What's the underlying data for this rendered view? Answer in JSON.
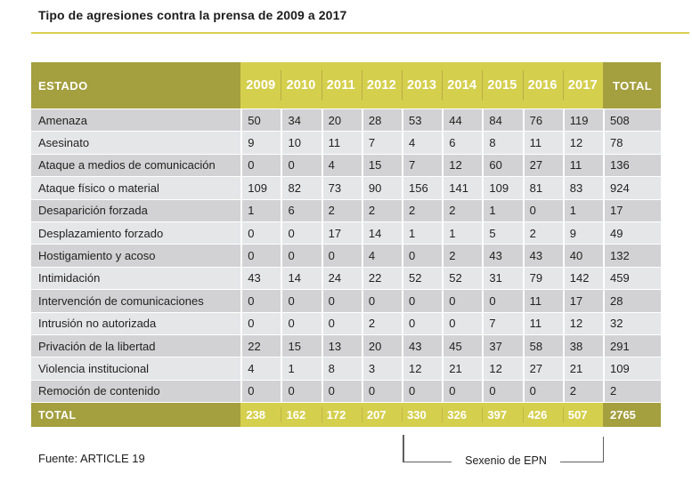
{
  "title": "Tipo de agresiones contra la prensa de 2009 a 2017",
  "source": "Fuente: ARTICLE 19",
  "annotation": "Sexenio de EPN",
  "colors": {
    "header_dark": "#a49f3f",
    "header_light": "#d5cf4e",
    "row_dark": "#d2d2d4",
    "row_light": "#e5e6e8",
    "rule": "#d8cf52",
    "divider_dark": "#b6af45",
    "divider_total": "#beb746",
    "bracket": "#5f5f5f"
  },
  "chart_data": {
    "type": "table",
    "title": "Tipo de agresiones contra la prensa de 2009 a 2017",
    "columns": [
      "ESTADO",
      "2009",
      "2010",
      "2011",
      "2012",
      "2013",
      "2014",
      "2015",
      "2016",
      "2017",
      "TOTAL"
    ],
    "rows": [
      {
        "label": "Amenaza",
        "values": [
          50,
          34,
          20,
          28,
          53,
          44,
          84,
          76,
          119,
          508
        ]
      },
      {
        "label": "Asesinato",
        "values": [
          9,
          10,
          11,
          7,
          4,
          6,
          8,
          11,
          12,
          78
        ]
      },
      {
        "label": "Ataque a medios de comunicación",
        "values": [
          0,
          0,
          4,
          15,
          7,
          12,
          60,
          27,
          11,
          136
        ]
      },
      {
        "label": "Ataque físico o material",
        "values": [
          109,
          82,
          73,
          90,
          156,
          141,
          109,
          81,
          83,
          924
        ]
      },
      {
        "label": "Desaparición forzada",
        "values": [
          1,
          6,
          2,
          2,
          2,
          2,
          1,
          0,
          1,
          17
        ]
      },
      {
        "label": "Desplazamiento forzado",
        "values": [
          0,
          0,
          17,
          14,
          1,
          1,
          5,
          2,
          9,
          49
        ]
      },
      {
        "label": "Hostigamiento y acoso",
        "values": [
          0,
          0,
          0,
          4,
          0,
          2,
          43,
          43,
          40,
          132
        ]
      },
      {
        "label": "Intimidación",
        "values": [
          43,
          14,
          24,
          22,
          52,
          52,
          31,
          79,
          142,
          459
        ]
      },
      {
        "label": "Intervención de comunicaciones",
        "values": [
          0,
          0,
          0,
          0,
          0,
          0,
          0,
          11,
          17,
          28
        ]
      },
      {
        "label": "Intrusión no autorizada",
        "values": [
          0,
          0,
          0,
          2,
          0,
          0,
          7,
          11,
          12,
          32
        ]
      },
      {
        "label": "Privación de la libertad",
        "values": [
          22,
          15,
          13,
          20,
          43,
          45,
          37,
          58,
          38,
          291
        ]
      },
      {
        "label": "Violencia institucional",
        "values": [
          4,
          1,
          8,
          3,
          12,
          21,
          12,
          27,
          21,
          109
        ]
      },
      {
        "label": "Remoción de contenido",
        "values": [
          0,
          0,
          0,
          0,
          0,
          0,
          0,
          0,
          2,
          2
        ]
      }
    ],
    "total_row": {
      "label": "TOTAL",
      "values": [
        238,
        162,
        172,
        207,
        330,
        326,
        397,
        426,
        507,
        2765
      ]
    },
    "source": "Fuente: ARTICLE 19",
    "annotation": "Sexenio de EPN",
    "annotation_span_years": [
      "2013",
      "2017"
    ]
  }
}
